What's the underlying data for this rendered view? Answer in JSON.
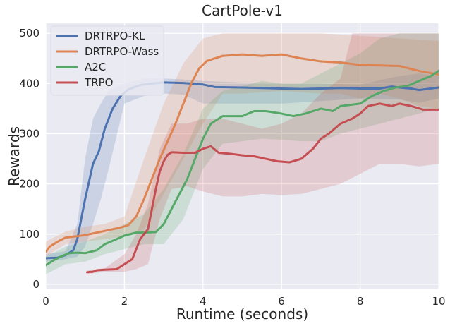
{
  "chart_data": {
    "type": "line",
    "title": "CartPole-v1",
    "xlabel": "Runtime (seconds)",
    "ylabel": "Rewards",
    "xlim": [
      0,
      10
    ],
    "ylim": [
      -10,
      520
    ],
    "xticks": [
      0,
      2,
      4,
      6,
      8,
      10
    ],
    "xtick_labels": [
      "0",
      "2",
      "4",
      "6",
      "8",
      "10"
    ],
    "yticks": [
      0,
      100,
      200,
      300,
      400,
      500
    ],
    "ytick_labels": [
      "0",
      "100",
      "200",
      "300",
      "400",
      "500"
    ],
    "grid": true,
    "background": "#eaeaf2",
    "legend_position": "top-left",
    "series": [
      {
        "name": "DRTRPO-KL",
        "color": "#4c72b0",
        "points": [
          [
            0.0,
            52
          ],
          [
            0.3,
            53
          ],
          [
            0.5,
            58
          ],
          [
            0.7,
            68
          ],
          [
            0.8,
            90
          ],
          [
            0.9,
            130
          ],
          [
            1.0,
            170
          ],
          [
            1.1,
            205
          ],
          [
            1.2,
            240
          ],
          [
            1.35,
            265
          ],
          [
            1.5,
            310
          ],
          [
            1.7,
            350
          ],
          [
            1.9,
            375
          ],
          [
            2.1,
            388
          ],
          [
            2.4,
            397
          ],
          [
            2.7,
            400
          ],
          [
            3.0,
            402
          ],
          [
            3.5,
            401
          ],
          [
            4.0,
            398
          ],
          [
            4.3,
            393
          ],
          [
            5.0,
            392
          ],
          [
            5.5,
            391
          ],
          [
            6.0,
            390
          ],
          [
            6.5,
            389
          ],
          [
            7.0,
            390
          ],
          [
            7.5,
            391
          ],
          [
            8.0,
            390
          ],
          [
            8.5,
            390
          ],
          [
            8.8,
            394
          ],
          [
            9.0,
            392
          ],
          [
            9.3,
            390
          ],
          [
            9.5,
            387
          ],
          [
            10.0,
            392
          ]
        ],
        "upper": [
          [
            0.0,
            60
          ],
          [
            0.5,
            66
          ],
          [
            0.8,
            120
          ],
          [
            1.0,
            250
          ],
          [
            1.2,
            330
          ],
          [
            1.4,
            360
          ],
          [
            1.6,
            385
          ],
          [
            2.0,
            400
          ],
          [
            2.5,
            410
          ],
          [
            3.0,
            410
          ],
          [
            3.5,
            408
          ],
          [
            4.0,
            405
          ],
          [
            5.0,
            402
          ],
          [
            6.0,
            400
          ],
          [
            7.0,
            400
          ],
          [
            8.0,
            398
          ],
          [
            9.0,
            415
          ],
          [
            9.5,
            420
          ],
          [
            10.0,
            415
          ]
        ],
        "lower": [
          [
            0.0,
            45
          ],
          [
            0.5,
            50
          ],
          [
            0.8,
            55
          ],
          [
            1.0,
            75
          ],
          [
            1.2,
            120
          ],
          [
            1.4,
            170
          ],
          [
            1.6,
            230
          ],
          [
            2.0,
            360
          ],
          [
            2.5,
            375
          ],
          [
            3.0,
            380
          ],
          [
            3.5,
            378
          ],
          [
            4.0,
            360
          ],
          [
            5.0,
            360
          ],
          [
            6.0,
            360
          ],
          [
            7.0,
            365
          ],
          [
            8.0,
            370
          ],
          [
            9.0,
            368
          ],
          [
            9.5,
            362
          ],
          [
            10.0,
            370
          ]
        ]
      },
      {
        "name": "DRTRPO-Wass",
        "color": "#dd8452",
        "points": [
          [
            0.0,
            65
          ],
          [
            0.1,
            75
          ],
          [
            0.3,
            85
          ],
          [
            0.5,
            93
          ],
          [
            0.8,
            96
          ],
          [
            1.0,
            98
          ],
          [
            1.3,
            103
          ],
          [
            1.6,
            108
          ],
          [
            1.9,
            113
          ],
          [
            2.1,
            118
          ],
          [
            2.3,
            135
          ],
          [
            2.5,
            170
          ],
          [
            2.7,
            210
          ],
          [
            2.9,
            250
          ],
          [
            3.1,
            285
          ],
          [
            3.3,
            320
          ],
          [
            3.5,
            360
          ],
          [
            3.7,
            400
          ],
          [
            3.9,
            430
          ],
          [
            4.1,
            445
          ],
          [
            4.5,
            455
          ],
          [
            5.0,
            458
          ],
          [
            5.5,
            455
          ],
          [
            6.0,
            458
          ],
          [
            6.5,
            450
          ],
          [
            7.0,
            444
          ],
          [
            7.5,
            442
          ],
          [
            8.0,
            437
          ],
          [
            8.5,
            436
          ],
          [
            9.0,
            435
          ],
          [
            9.5,
            425
          ],
          [
            10.0,
            418
          ]
        ],
        "upper": [
          [
            0.0,
            85
          ],
          [
            0.5,
            105
          ],
          [
            1.0,
            115
          ],
          [
            1.5,
            120
          ],
          [
            2.0,
            135
          ],
          [
            2.5,
            250
          ],
          [
            3.0,
            360
          ],
          [
            3.5,
            440
          ],
          [
            4.0,
            490
          ],
          [
            4.5,
            500
          ],
          [
            6.0,
            500
          ],
          [
            7.0,
            500
          ],
          [
            8.0,
            495
          ],
          [
            9.0,
            490
          ],
          [
            10.0,
            485
          ]
        ],
        "lower": [
          [
            0.0,
            55
          ],
          [
            0.5,
            80
          ],
          [
            1.0,
            85
          ],
          [
            1.5,
            90
          ],
          [
            2.0,
            95
          ],
          [
            2.5,
            110
          ],
          [
            3.0,
            180
          ],
          [
            3.5,
            250
          ],
          [
            4.0,
            320
          ],
          [
            4.5,
            380
          ],
          [
            5.0,
            380
          ],
          [
            6.0,
            385
          ],
          [
            7.0,
            380
          ],
          [
            7.5,
            380
          ],
          [
            8.0,
            370
          ],
          [
            8.5,
            380
          ],
          [
            9.0,
            370
          ],
          [
            9.5,
            355
          ],
          [
            10.0,
            350
          ]
        ]
      },
      {
        "name": "A2C",
        "color": "#55a868",
        "points": [
          [
            0.0,
            38
          ],
          [
            0.2,
            48
          ],
          [
            0.4,
            56
          ],
          [
            0.6,
            62
          ],
          [
            0.8,
            63
          ],
          [
            1.0,
            62
          ],
          [
            1.3,
            68
          ],
          [
            1.5,
            80
          ],
          [
            1.8,
            90
          ],
          [
            2.0,
            97
          ],
          [
            2.3,
            103
          ],
          [
            2.5,
            103
          ],
          [
            2.8,
            104
          ],
          [
            3.0,
            120
          ],
          [
            3.2,
            150
          ],
          [
            3.4,
            180
          ],
          [
            3.6,
            210
          ],
          [
            3.8,
            250
          ],
          [
            4.0,
            290
          ],
          [
            4.2,
            320
          ],
          [
            4.5,
            335
          ],
          [
            5.0,
            335
          ],
          [
            5.3,
            345
          ],
          [
            5.6,
            345
          ],
          [
            6.0,
            340
          ],
          [
            6.3,
            335
          ],
          [
            6.6,
            340
          ],
          [
            7.0,
            350
          ],
          [
            7.3,
            345
          ],
          [
            7.5,
            355
          ],
          [
            8.0,
            360
          ],
          [
            8.3,
            375
          ],
          [
            8.6,
            385
          ],
          [
            8.9,
            392
          ],
          [
            9.2,
            395
          ],
          [
            9.5,
            405
          ],
          [
            9.8,
            415
          ],
          [
            10.0,
            425
          ]
        ],
        "upper": [
          [
            0.0,
            55
          ],
          [
            0.5,
            75
          ],
          [
            1.0,
            85
          ],
          [
            1.5,
            100
          ],
          [
            2.0,
            120
          ],
          [
            2.5,
            140
          ],
          [
            3.0,
            190
          ],
          [
            3.5,
            260
          ],
          [
            4.0,
            350
          ],
          [
            4.5,
            385
          ],
          [
            5.0,
            395
          ],
          [
            5.5,
            405
          ],
          [
            6.0,
            400
          ],
          [
            6.5,
            400
          ],
          [
            7.0,
            420
          ],
          [
            7.5,
            440
          ],
          [
            8.0,
            460
          ],
          [
            8.5,
            490
          ],
          [
            9.0,
            500
          ],
          [
            10.0,
            500
          ]
        ],
        "lower": [
          [
            0.0,
            20
          ],
          [
            0.5,
            40
          ],
          [
            1.0,
            45
          ],
          [
            1.5,
            60
          ],
          [
            2.0,
            70
          ],
          [
            2.5,
            80
          ],
          [
            3.0,
            80
          ],
          [
            3.5,
            130
          ],
          [
            4.0,
            230
          ],
          [
            4.5,
            280
          ],
          [
            5.0,
            285
          ],
          [
            5.5,
            290
          ],
          [
            6.0,
            288
          ],
          [
            6.5,
            285
          ],
          [
            7.0,
            285
          ],
          [
            7.5,
            300
          ],
          [
            8.0,
            310
          ],
          [
            8.5,
            320
          ],
          [
            9.0,
            330
          ],
          [
            9.5,
            340
          ],
          [
            10.0,
            350
          ]
        ]
      },
      {
        "name": "TRPO",
        "color": "#c44e52",
        "points": [
          [
            1.05,
            24
          ],
          [
            1.2,
            25
          ],
          [
            1.3,
            28
          ],
          [
            1.5,
            29
          ],
          [
            1.8,
            30
          ],
          [
            1.9,
            35
          ],
          [
            2.0,
            40
          ],
          [
            2.2,
            50
          ],
          [
            2.3,
            70
          ],
          [
            2.4,
            90
          ],
          [
            2.5,
            100
          ],
          [
            2.6,
            110
          ],
          [
            2.7,
            150
          ],
          [
            2.8,
            190
          ],
          [
            2.9,
            225
          ],
          [
            3.0,
            245
          ],
          [
            3.1,
            258
          ],
          [
            3.2,
            263
          ],
          [
            3.5,
            262
          ],
          [
            3.8,
            262
          ],
          [
            4.0,
            270
          ],
          [
            4.2,
            275
          ],
          [
            4.4,
            262
          ],
          [
            4.7,
            260
          ],
          [
            5.0,
            257
          ],
          [
            5.3,
            255
          ],
          [
            5.6,
            250
          ],
          [
            5.9,
            245
          ],
          [
            6.2,
            243
          ],
          [
            6.5,
            250
          ],
          [
            6.8,
            270
          ],
          [
            7.0,
            290
          ],
          [
            7.2,
            300
          ],
          [
            7.5,
            320
          ],
          [
            7.8,
            330
          ],
          [
            8.0,
            340
          ],
          [
            8.2,
            355
          ],
          [
            8.5,
            360
          ],
          [
            8.8,
            355
          ],
          [
            9.0,
            360
          ],
          [
            9.3,
            355
          ],
          [
            9.6,
            348
          ],
          [
            10.0,
            348
          ]
        ],
        "upper": [
          [
            1.05,
            28
          ],
          [
            1.5,
            32
          ],
          [
            2.0,
            60
          ],
          [
            2.3,
            100
          ],
          [
            2.6,
            160
          ],
          [
            2.9,
            270
          ],
          [
            3.2,
            320
          ],
          [
            3.6,
            320
          ],
          [
            4.0,
            330
          ],
          [
            4.5,
            330
          ],
          [
            5.0,
            320
          ],
          [
            5.5,
            310
          ],
          [
            6.0,
            320
          ],
          [
            6.5,
            340
          ],
          [
            7.0,
            380
          ],
          [
            7.5,
            410
          ],
          [
            7.8,
            500
          ],
          [
            8.0,
            500
          ],
          [
            9.0,
            500
          ],
          [
            10.0,
            500
          ]
        ],
        "lower": [
          [
            1.05,
            20
          ],
          [
            1.5,
            25
          ],
          [
            2.0,
            25
          ],
          [
            2.3,
            30
          ],
          [
            2.6,
            40
          ],
          [
            2.9,
            130
          ],
          [
            3.2,
            190
          ],
          [
            3.6,
            195
          ],
          [
            4.0,
            185
          ],
          [
            4.5,
            175
          ],
          [
            5.0,
            175
          ],
          [
            5.5,
            180
          ],
          [
            6.0,
            178
          ],
          [
            6.5,
            180
          ],
          [
            7.0,
            190
          ],
          [
            7.5,
            200
          ],
          [
            8.0,
            220
          ],
          [
            8.5,
            240
          ],
          [
            9.0,
            240
          ],
          [
            9.5,
            235
          ],
          [
            10.0,
            240
          ]
        ]
      }
    ]
  }
}
